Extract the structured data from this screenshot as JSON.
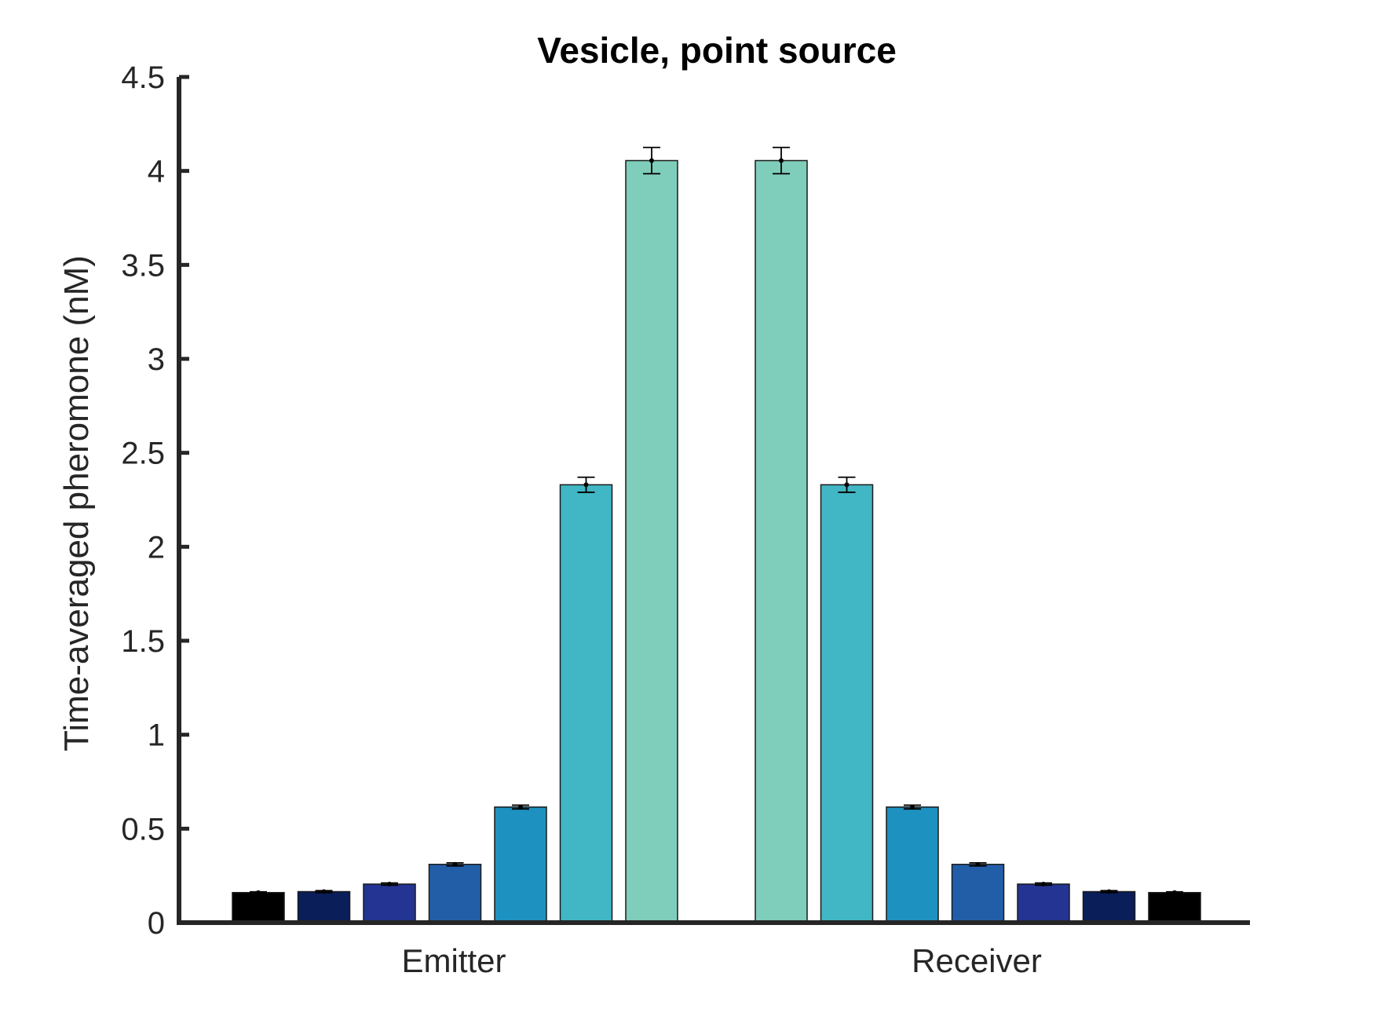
{
  "chart_data": {
    "type": "bar",
    "title": "Vesicle, point source",
    "xlabel": "",
    "ylabel": "Time-averaged pheromone (nM)",
    "ylim": [
      0,
      4.5
    ],
    "yticks": [
      0,
      0.5,
      1,
      1.5,
      2,
      2.5,
      3,
      3.5,
      4,
      4.5
    ],
    "ytick_labels": [
      "0",
      "0.5",
      "1",
      "1.5",
      "2",
      "2.5",
      "3",
      "3.5",
      "4",
      "4.5"
    ],
    "categories": [
      "Emitter",
      "Receiver"
    ],
    "grid": false,
    "legend": "none",
    "groups": [
      {
        "category": "Emitter",
        "values": [
          0.16,
          0.165,
          0.205,
          0.31,
          0.615,
          2.33,
          4.055
        ],
        "errors": [
          0.004,
          0.005,
          0.006,
          0.008,
          0.01,
          0.04,
          0.07
        ],
        "colors": [
          "#000000",
          "#0a1e5a",
          "#243493",
          "#225ea8",
          "#1d91c0",
          "#41b6c4",
          "#7fcdbb"
        ]
      },
      {
        "category": "Receiver",
        "values": [
          4.055,
          2.33,
          0.615,
          0.31,
          0.205,
          0.165,
          0.16
        ],
        "errors": [
          0.07,
          0.04,
          0.01,
          0.008,
          0.006,
          0.005,
          0.004
        ],
        "colors": [
          "#7fcdbb",
          "#41b6c4",
          "#1d91c0",
          "#225ea8",
          "#243493",
          "#0a1e5a",
          "#000000"
        ]
      }
    ],
    "axis_color": "#262626",
    "bar_edge_color": "#1a1a1a"
  }
}
